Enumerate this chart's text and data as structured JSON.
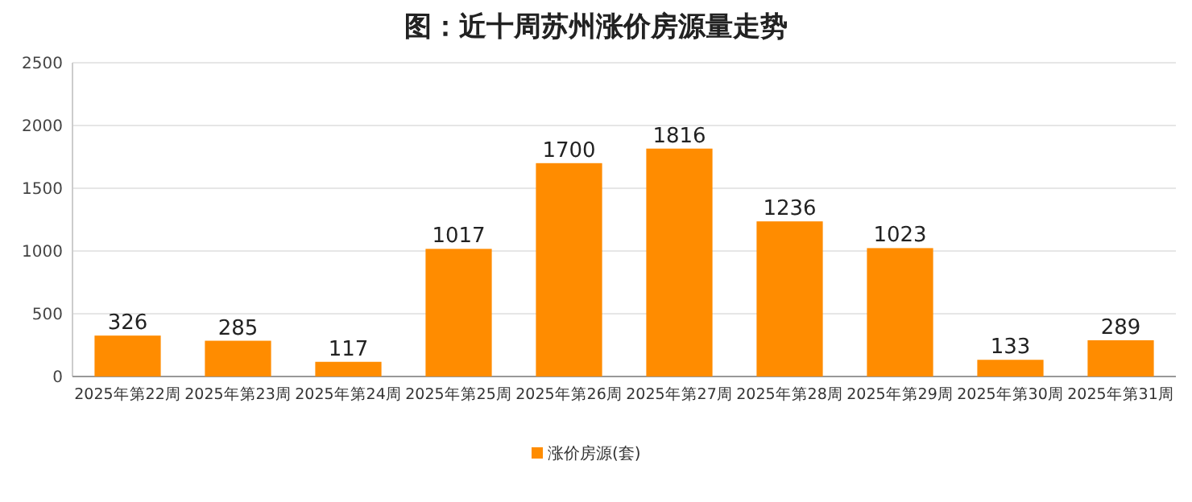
{
  "chart_data": {
    "type": "bar",
    "title": "图：近十周苏州涨价房源量走势",
    "categories": [
      "2025年第22周",
      "2025年第23周",
      "2025年第24周",
      "2025年第25周",
      "2025年第26周",
      "2025年第27周",
      "2025年第28周",
      "2025年第29周",
      "2025年第30周",
      "2025年第31周"
    ],
    "series": [
      {
        "name": "涨价房源(套)",
        "color": "#ff8c00",
        "values": [
          326,
          285,
          117,
          1017,
          1700,
          1816,
          1236,
          1023,
          133,
          289
        ]
      }
    ],
    "ylim": [
      0,
      2500
    ],
    "yticks": [
      0,
      500,
      1000,
      1500,
      2000,
      2500
    ],
    "grid": "y",
    "legend": "bottom",
    "data_labels": true
  }
}
